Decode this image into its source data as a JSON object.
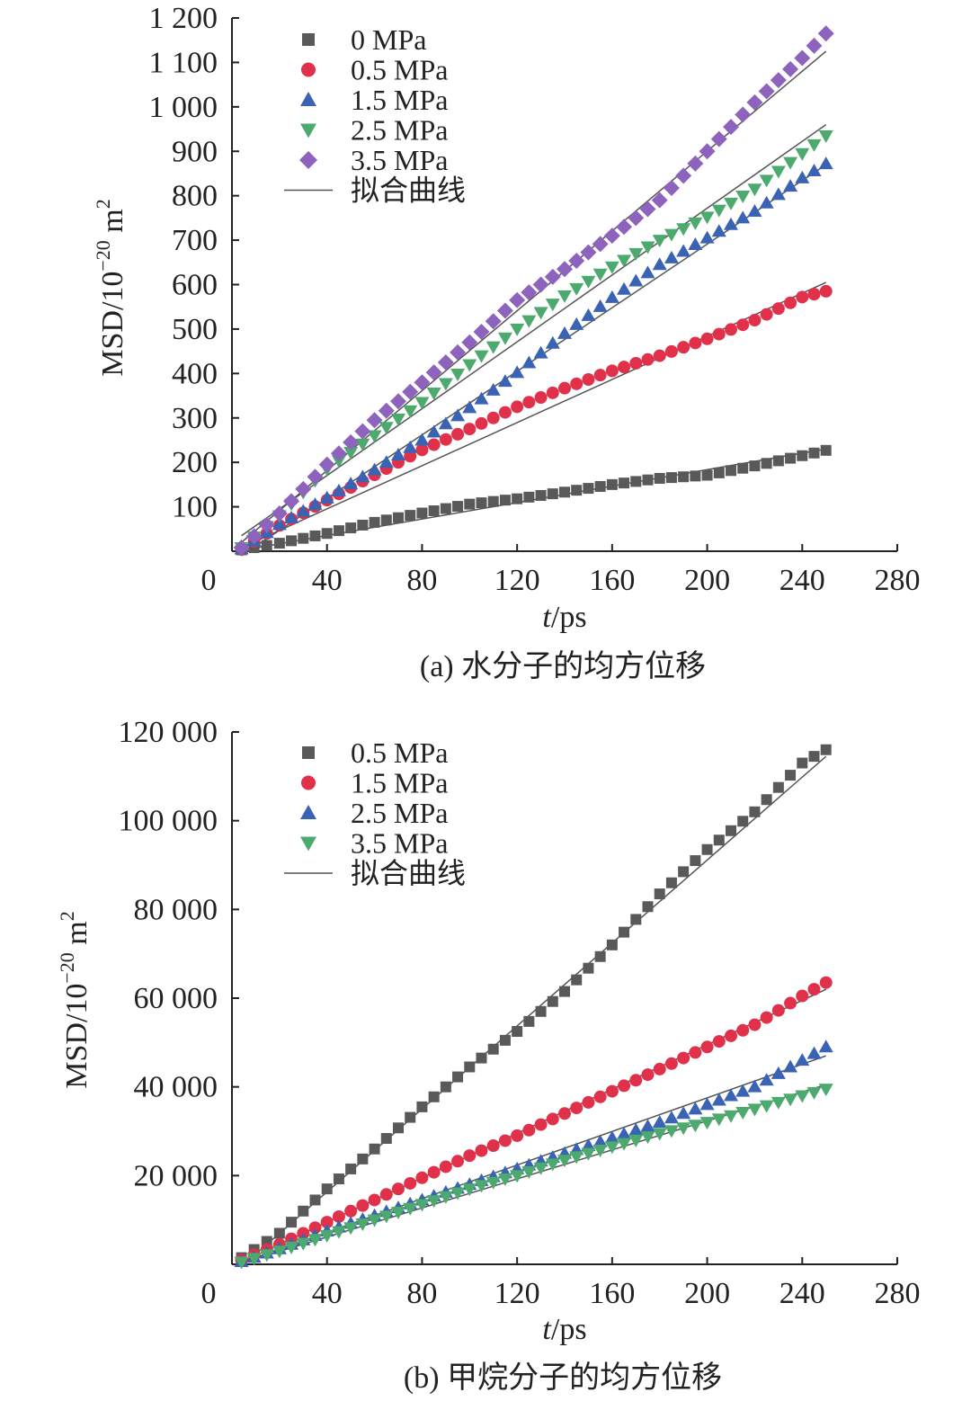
{
  "chart_data": [
    {
      "type": "scatter",
      "caption": "(a) 水分子的均方位移",
      "xlabel_var": "t",
      "xlabel_unit": "/ps",
      "ylabel_main": "MSD/10",
      "ylabel_exp": "−20",
      "ylabel_unit": " m",
      "ylabel_unit_exp": "2",
      "xlim": [
        0,
        280
      ],
      "ylim": [
        0,
        1200
      ],
      "x_ticks": [
        0,
        40,
        80,
        120,
        160,
        200,
        240,
        280
      ],
      "x_tick_labels": [
        "0",
        "40",
        "80",
        "120",
        "160",
        "200",
        "240",
        "280"
      ],
      "y_ticks": [
        100,
        200,
        300,
        400,
        500,
        600,
        700,
        800,
        900,
        1000,
        1100,
        1200
      ],
      "y_tick_labels": [
        "100",
        "200",
        "300",
        "400",
        "500",
        "600",
        "700",
        "800",
        "900",
        "1 000",
        "1 100",
        "1 200"
      ],
      "fit_label": "拟合曲线",
      "series": [
        {
          "name": "0 MPa",
          "color": "#595959",
          "marker": "square",
          "points": [
            [
              4,
              3
            ],
            [
              20,
              18
            ],
            [
              40,
              40
            ],
            [
              60,
              65
            ],
            [
              80,
              86
            ],
            [
              100,
              106
            ],
            [
              120,
              118
            ],
            [
              140,
              133
            ],
            [
              160,
              150
            ],
            [
              180,
              164
            ],
            [
              200,
              171
            ],
            [
              220,
              192
            ],
            [
              240,
              215
            ],
            [
              250,
              227
            ]
          ],
          "fit": [
            [
              4,
              2
            ],
            [
              250,
              230
            ]
          ]
        },
        {
          "name": "0.5 MPa",
          "color": "#e1304a",
          "marker": "circle",
          "points": [
            [
              4,
              4
            ],
            [
              20,
              58
            ],
            [
              40,
              115
            ],
            [
              60,
              172
            ],
            [
              80,
              228
            ],
            [
              100,
              275
            ],
            [
              120,
              325
            ],
            [
              140,
              367
            ],
            [
              160,
              406
            ],
            [
              180,
              440
            ],
            [
              200,
              478
            ],
            [
              220,
              520
            ],
            [
              240,
              572
            ],
            [
              250,
              585
            ]
          ],
          "fit": [
            [
              4,
              8
            ],
            [
              250,
              605
            ]
          ]
        },
        {
          "name": "1.5 MPa",
          "color": "#3a63b3",
          "marker": "triangle-up",
          "points": [
            [
              4,
              5
            ],
            [
              20,
              60
            ],
            [
              40,
              120
            ],
            [
              60,
              183
            ],
            [
              80,
              250
            ],
            [
              100,
              323
            ],
            [
              120,
              402
            ],
            [
              140,
              490
            ],
            [
              160,
              571
            ],
            [
              180,
              645
            ],
            [
              200,
              705
            ],
            [
              220,
              765
            ],
            [
              240,
              840
            ],
            [
              250,
              872
            ]
          ],
          "fit": [
            [
              4,
              -10
            ],
            [
              250,
              870
            ]
          ]
        },
        {
          "name": "2.5 MPa",
          "color": "#4daa6e",
          "marker": "triangle-down",
          "points": [
            [
              4,
              8
            ],
            [
              20,
              80
            ],
            [
              40,
              185
            ],
            [
              60,
              260
            ],
            [
              80,
              335
            ],
            [
              100,
              420
            ],
            [
              120,
              500
            ],
            [
              140,
              575
            ],
            [
              160,
              640
            ],
            [
              180,
              700
            ],
            [
              200,
              752
            ],
            [
              220,
              815
            ],
            [
              240,
              895
            ],
            [
              250,
              935
            ]
          ],
          "fit": [
            [
              4,
              35
            ],
            [
              250,
              960
            ]
          ]
        },
        {
          "name": "3.5 MPa",
          "color": "#8e63bd",
          "marker": "diamond",
          "points": [
            [
              4,
              8
            ],
            [
              20,
              85
            ],
            [
              40,
              195
            ],
            [
              60,
              295
            ],
            [
              80,
              380
            ],
            [
              100,
              470
            ],
            [
              120,
              565
            ],
            [
              140,
              635
            ],
            [
              160,
              710
            ],
            [
              180,
              790
            ],
            [
              200,
              900
            ],
            [
              220,
              1010
            ],
            [
              240,
              1110
            ],
            [
              250,
              1165
            ]
          ],
          "fit": [
            [
              4,
              20
            ],
            [
              250,
              1125
            ]
          ]
        }
      ]
    },
    {
      "type": "scatter",
      "caption": "(b) 甲烷分子的均方位移",
      "xlabel_var": "t",
      "xlabel_unit": "/ps",
      "ylabel_main": "MSD/10",
      "ylabel_exp": "−20",
      "ylabel_unit": " m",
      "ylabel_unit_exp": "2",
      "xlim": [
        0,
        280
      ],
      "ylim": [
        0,
        120000
      ],
      "x_ticks": [
        0,
        40,
        80,
        120,
        160,
        200,
        240,
        280
      ],
      "x_tick_labels": [
        "0",
        "40",
        "80",
        "120",
        "160",
        "200",
        "240",
        "280"
      ],
      "y_ticks": [
        20000,
        40000,
        60000,
        80000,
        100000,
        120000
      ],
      "y_tick_labels": [
        "20 000",
        "40 000",
        "60 000",
        "80 000",
        "100 000",
        "120 000"
      ],
      "fit_label": "拟合曲线",
      "series": [
        {
          "name": "0.5 MPa",
          "color": "#595959",
          "marker": "square",
          "points": [
            [
              4,
              1500
            ],
            [
              20,
              7000
            ],
            [
              40,
              17000
            ],
            [
              60,
              26000
            ],
            [
              80,
              35500
            ],
            [
              100,
              44500
            ],
            [
              120,
              52500
            ],
            [
              140,
              61500
            ],
            [
              160,
              72000
            ],
            [
              180,
              83500
            ],
            [
              200,
              93500
            ],
            [
              220,
              102000
            ],
            [
              240,
              113000
            ],
            [
              250,
              116000
            ]
          ],
          "fit": [
            [
              4,
              -500
            ],
            [
              250,
              114500
            ]
          ]
        },
        {
          "name": "1.5 MPa",
          "color": "#e1304a",
          "marker": "circle",
          "points": [
            [
              4,
              1000
            ],
            [
              20,
              4500
            ],
            [
              40,
              9500
            ],
            [
              60,
              14500
            ],
            [
              80,
              19500
            ],
            [
              100,
              24500
            ],
            [
              120,
              29000
            ],
            [
              140,
              34000
            ],
            [
              160,
              39000
            ],
            [
              180,
              44000
            ],
            [
              200,
              49000
            ],
            [
              220,
              54000
            ],
            [
              240,
              60500
            ],
            [
              250,
              63500
            ]
          ],
          "fit": [
            [
              4,
              500
            ],
            [
              250,
              62000
            ]
          ]
        },
        {
          "name": "2.5 MPa",
          "color": "#3a63b3",
          "marker": "triangle-up",
          "points": [
            [
              4,
              600
            ],
            [
              20,
              3500
            ],
            [
              40,
              7500
            ],
            [
              60,
              11000
            ],
            [
              80,
              14500
            ],
            [
              100,
              18000
            ],
            [
              120,
              21500
            ],
            [
              140,
              25000
            ],
            [
              160,
              28500
            ],
            [
              180,
              32000
            ],
            [
              200,
              36000
            ],
            [
              220,
              40000
            ],
            [
              240,
              46000
            ],
            [
              250,
              49000
            ]
          ],
          "fit": [
            [
              4,
              400
            ],
            [
              250,
              47000
            ]
          ]
        },
        {
          "name": "3.5 MPa",
          "color": "#4daa6e",
          "marker": "triangle-down",
          "points": [
            [
              4,
              500
            ],
            [
              20,
              3000
            ],
            [
              40,
              6500
            ],
            [
              60,
              10000
            ],
            [
              80,
              13500
            ],
            [
              100,
              17000
            ],
            [
              120,
              20000
            ],
            [
              140,
              23500
            ],
            [
              160,
              26500
            ],
            [
              180,
              29500
            ],
            [
              200,
              32000
            ],
            [
              220,
              35000
            ],
            [
              240,
              38000
            ],
            [
              250,
              39500
            ]
          ],
          "fit": [
            [
              4,
              300
            ],
            [
              250,
              40500
            ]
          ]
        }
      ]
    }
  ]
}
